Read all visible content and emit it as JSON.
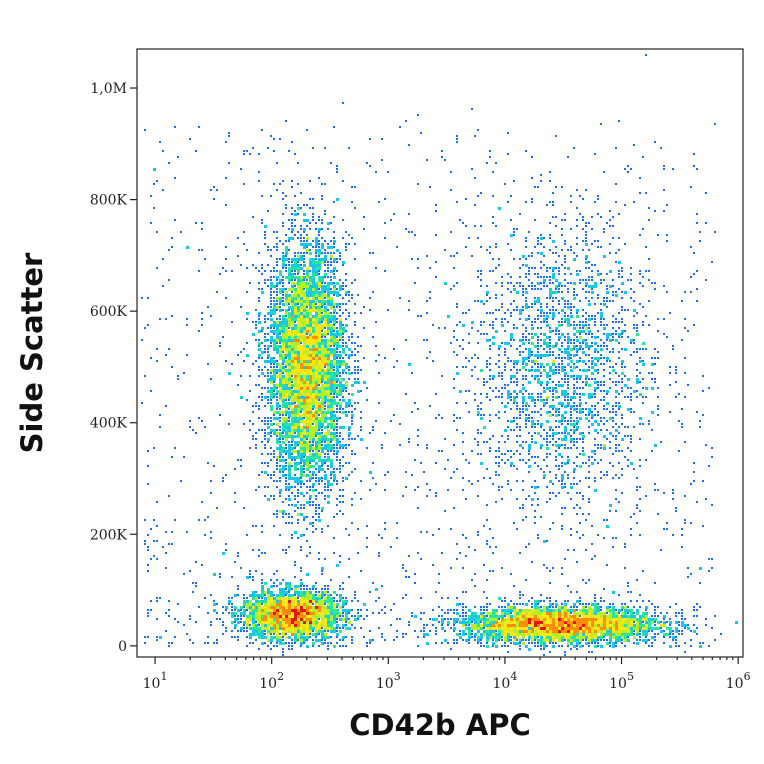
{
  "chart_data": {
    "type": "scatter",
    "subtype": "flow-cytometry-density-dot-plot",
    "xlabel": "CD42b APC",
    "ylabel": "Side Scatter",
    "x_scale": "log",
    "xlim": [
      7,
      1100000
    ],
    "ylim": [
      -20000,
      1070000
    ],
    "x_ticks": [
      {
        "value": 10,
        "base": "10",
        "exp": "1"
      },
      {
        "value": 100,
        "base": "10",
        "exp": "2"
      },
      {
        "value": 1000,
        "base": "10",
        "exp": "3"
      },
      {
        "value": 10000,
        "base": "10",
        "exp": "4"
      },
      {
        "value": 100000,
        "base": "10",
        "exp": "5"
      },
      {
        "value": 1000000,
        "base": "10",
        "exp": "6"
      }
    ],
    "y_ticks": [
      {
        "value": 0,
        "label": "0"
      },
      {
        "value": 200000,
        "label": "200K"
      },
      {
        "value": 400000,
        "label": "400K"
      },
      {
        "value": 600000,
        "label": "600K"
      },
      {
        "value": 800000,
        "label": "800K"
      },
      {
        "value": 1000000,
        "label": "1,0M"
      }
    ],
    "grid": false,
    "color_scale": [
      "#1010c8",
      "#1e6ef0",
      "#18c8e6",
      "#28e6a0",
      "#b4f028",
      "#ffe614",
      "#ff8c0a",
      "#e61414"
    ],
    "populations": [
      {
        "x_center": 200,
        "y_center": 500000,
        "x_spread_decades": 0.17,
        "y_spread": 110000,
        "weight": 0.36
      },
      {
        "x_center": 150,
        "y_center": 55000,
        "x_spread_decades": 0.22,
        "y_spread": 22000,
        "weight": 0.17
      },
      {
        "x_center": 30000,
        "y_center": 38000,
        "x_spread_decades": 0.42,
        "y_spread": 16000,
        "weight": 0.24
      },
      {
        "x_center": 30000,
        "y_center": 500000,
        "x_spread_decades": 0.38,
        "y_spread": 130000,
        "weight": 0.13
      }
    ]
  }
}
